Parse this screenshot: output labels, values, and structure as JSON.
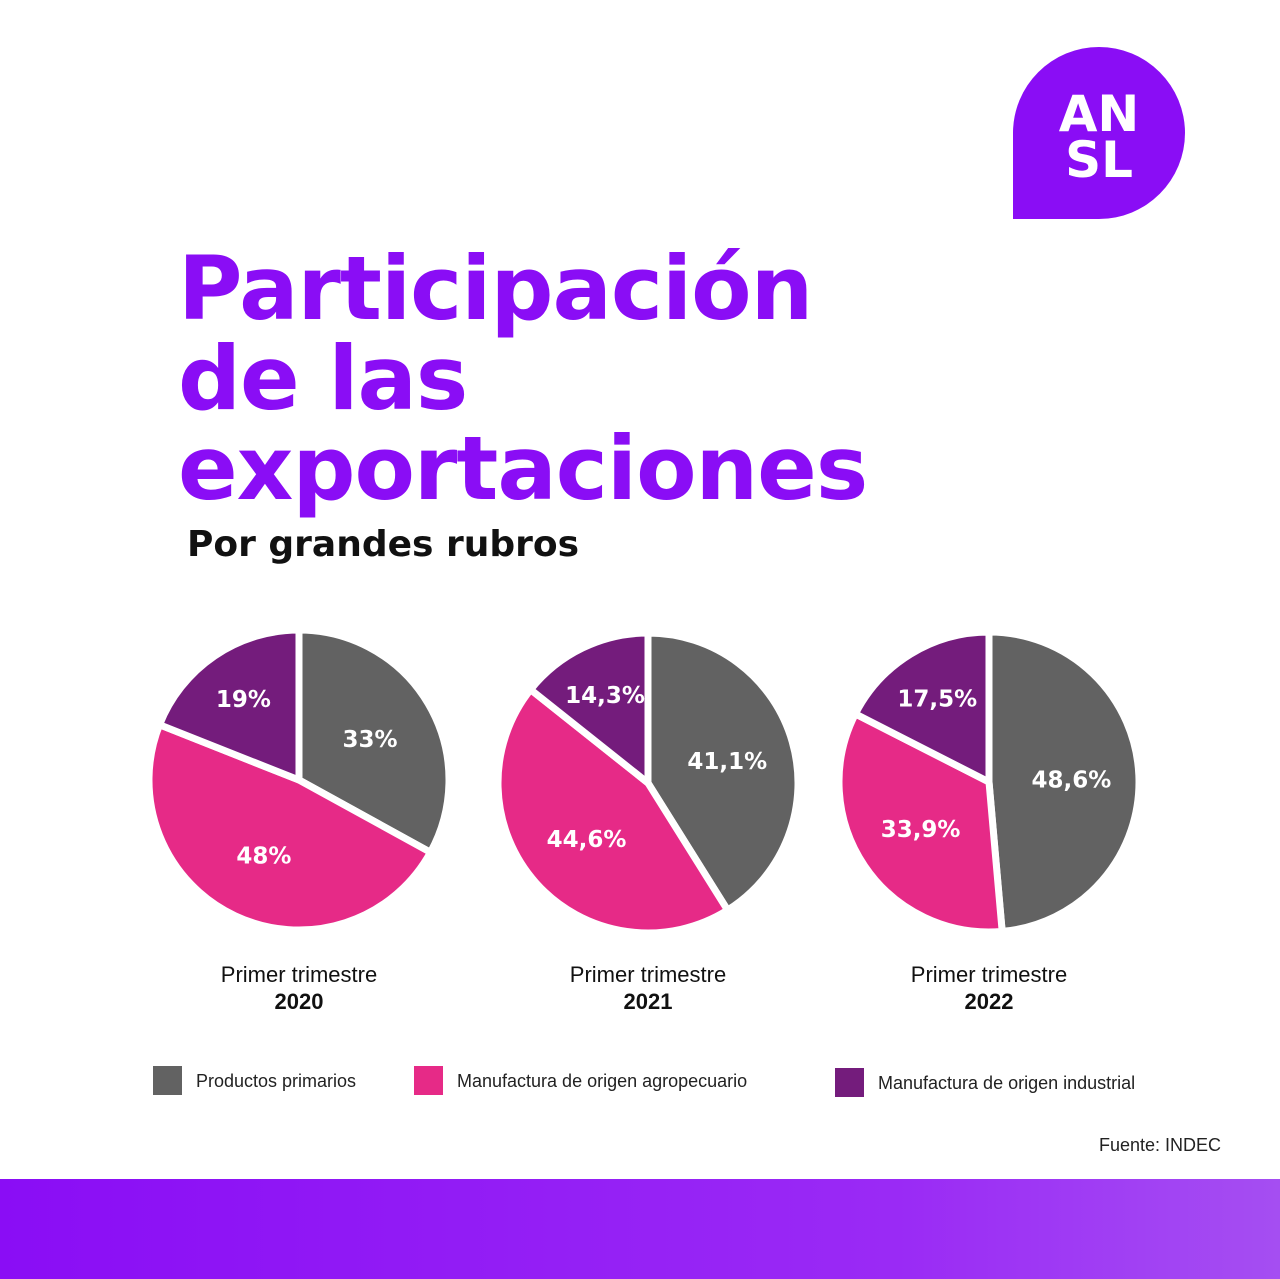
{
  "logo": {
    "line1": "AN",
    "line2": "SL"
  },
  "title_lines": [
    "Participación",
    "de las",
    "exportaciones"
  ],
  "subtitle": "Por grandes rubros",
  "source": "Fuente: INDEC",
  "colors": {
    "brand": "#8a0df5",
    "primarios": "#626262",
    "agro": "#e62a87",
    "industrial": "#741c7c"
  },
  "legend": [
    {
      "label": "Productos primarios",
      "color": "#626262"
    },
    {
      "label": "Manufactura de origen agropecuario",
      "color": "#e62a87"
    },
    {
      "label": "Manufactura de origen industrial",
      "color": "#741c7c"
    }
  ],
  "chart_data": [
    {
      "type": "pie",
      "period": "Primer trimestre",
      "year": "2020",
      "slices": [
        {
          "category": "Productos primarios",
          "value": 33,
          "label": "33%"
        },
        {
          "category": "Manufactura de origen agropecuario",
          "value": 48,
          "label": "48%"
        },
        {
          "category": "Manufactura de origen industrial",
          "value": 19,
          "label": "19%"
        }
      ]
    },
    {
      "type": "pie",
      "period": "Primer trimestre",
      "year": "2021",
      "slices": [
        {
          "category": "Productos primarios",
          "value": 41.1,
          "label": "41,1%"
        },
        {
          "category": "Manufactura de origen agropecuario",
          "value": 44.6,
          "label": "44,6%"
        },
        {
          "category": "Manufactura de origen industrial",
          "value": 14.3,
          "label": "14,3%"
        }
      ]
    },
    {
      "type": "pie",
      "period": "Primer trimestre",
      "year": "2022",
      "slices": [
        {
          "category": "Productos primarios",
          "value": 48.6,
          "label": "48,6%"
        },
        {
          "category": "Manufactura de origen agropecuario",
          "value": 33.9,
          "label": "33,9%"
        },
        {
          "category": "Manufactura de origen industrial",
          "value": 17.5,
          "label": "17,5%"
        }
      ]
    }
  ]
}
